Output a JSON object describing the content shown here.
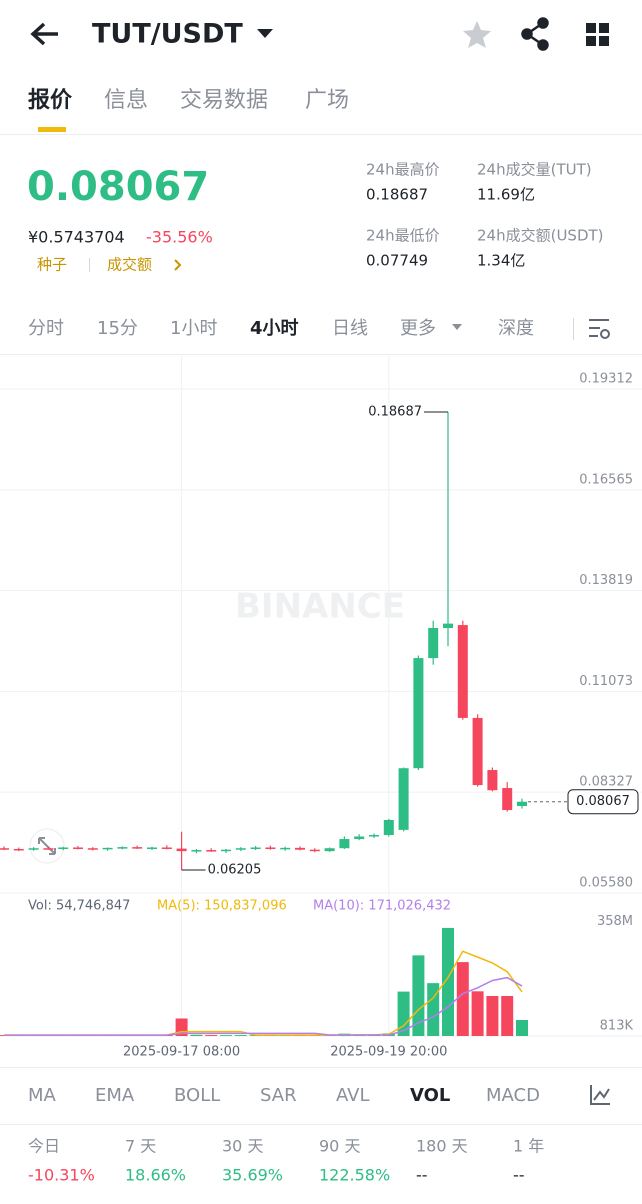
{
  "header": {
    "pair": "TUT/USDT"
  },
  "tabs": [
    "报价",
    "信息",
    "交易数据",
    "广场"
  ],
  "quote": {
    "price": "0.08067",
    "cny": "¥0.5743704",
    "change": "-35.56%",
    "tag": "种子",
    "link": "成交额",
    "stats": [
      {
        "label": "24h最高价",
        "value": "0.18687"
      },
      {
        "label": "24h成交量(TUT)",
        "value": "11.69亿"
      },
      {
        "label": "24h最低价",
        "value": "0.07749"
      },
      {
        "label": "24h成交额(USDT)",
        "value": "1.34亿"
      }
    ]
  },
  "timeframes": [
    "分时",
    "15分",
    "1小时",
    "4小时",
    "日线",
    "更多",
    "深度"
  ],
  "chart_data": {
    "type": "candlestick",
    "watermark": "BINANCE",
    "categories": [
      null,
      null,
      null,
      null,
      null,
      null,
      null,
      null,
      null,
      null,
      null,
      null,
      "2025-09-17 08:00",
      null,
      null,
      null,
      null,
      null,
      null,
      null,
      null,
      null,
      null,
      null,
      null,
      null,
      "2025-09-19 20:00",
      null,
      null,
      null,
      null,
      null,
      null,
      null,
      null,
      null
    ],
    "open": [
      0.068,
      0.0678,
      0.0676,
      0.068,
      0.0679,
      0.0682,
      0.068,
      0.0677,
      0.0681,
      0.0683,
      0.068,
      0.0682,
      0.0679,
      0.0672,
      0.0675,
      0.0673,
      0.0676,
      0.068,
      0.0682,
      0.0678,
      0.0681,
      0.0676,
      0.0672,
      0.068,
      0.0705,
      0.0712,
      0.0716,
      0.073,
      0.0898,
      0.1198,
      0.128,
      0.1288,
      0.1035,
      0.0893,
      0.0844,
      0.0795
    ],
    "high": [
      0.0685,
      0.0682,
      0.0683,
      0.0684,
      0.0684,
      0.0686,
      0.0683,
      0.0682,
      0.0685,
      0.0687,
      0.0684,
      0.0688,
      0.0725,
      0.0678,
      0.068,
      0.0678,
      0.0683,
      0.0686,
      0.0687,
      0.0684,
      0.0685,
      0.068,
      0.0682,
      0.0712,
      0.0718,
      0.072,
      0.076,
      0.09,
      0.1205,
      0.13,
      0.18687,
      0.13,
      0.1045,
      0.09,
      0.086,
      0.0815
    ],
    "low": [
      0.0675,
      0.0672,
      0.0673,
      0.0676,
      0.0675,
      0.0677,
      0.0674,
      0.0673,
      0.0677,
      0.0678,
      0.0675,
      0.0677,
      0.06205,
      0.0666,
      0.067,
      0.0667,
      0.0672,
      0.0675,
      0.0676,
      0.0673,
      0.0674,
      0.0669,
      0.067,
      0.0678,
      0.0702,
      0.0708,
      0.0712,
      0.0726,
      0.0893,
      0.118,
      0.123,
      0.103,
      0.0848,
      0.0835,
      0.078,
      0.0788
    ],
    "close": [
      0.0678,
      0.0676,
      0.068,
      0.0679,
      0.0682,
      0.068,
      0.0677,
      0.0681,
      0.0683,
      0.068,
      0.0682,
      0.0679,
      0.0672,
      0.0675,
      0.0673,
      0.0676,
      0.068,
      0.0682,
      0.0678,
      0.0681,
      0.0676,
      0.0672,
      0.068,
      0.0705,
      0.0712,
      0.0716,
      0.0757,
      0.0898,
      0.1198,
      0.128,
      0.1292,
      0.1035,
      0.0852,
      0.0838,
      0.0784,
      0.08067
    ],
    "up_color": "#2ebd85",
    "down_color": "#f6465d",
    "ylim": [
      0.0558,
      0.19312
    ],
    "yticks": [
      0.19312,
      0.16565,
      0.13819,
      0.11073,
      0.08327,
      {
        "value": 0.0558,
        "label": "0.05580"
      }
    ],
    "high_label": "0.18687",
    "low_label": "0.06205",
    "last_label": "0.08067",
    "last_value": 0.08067,
    "volume": [
      3000000,
      2500000,
      3500000,
      2800000,
      3200000,
      2600000,
      3000000,
      2700000,
      3300000,
      2900000,
      3100000,
      2800000,
      60000000,
      4000000,
      3200000,
      2900000,
      3100000,
      2700000,
      3300000,
      3000000,
      2800000,
      3200000,
      3600000,
      8000000,
      5000000,
      5500000,
      9000000,
      152000000,
      276000000,
      181000000,
      370000000,
      253000000,
      153000000,
      137000000,
      137000000,
      54746847
    ],
    "ma5": [
      3000000,
      3000000,
      3000000,
      3000000,
      3000000,
      3000000,
      3000000,
      3000000,
      3000000,
      3000000,
      3000000,
      3000000,
      15000000,
      15000000,
      15000000,
      15000000,
      15000000,
      3000000,
      3000000,
      3000000,
      3000000,
      3000000,
      3000000,
      4000000,
      4000000,
      4000000,
      6000000,
      35000000,
      90000000,
      130000000,
      200000000,
      290000000,
      270000000,
      250000000,
      220000000,
      150837096
    ],
    "ma10": [
      3000000,
      3000000,
      3000000,
      3000000,
      3000000,
      3000000,
      3000000,
      3000000,
      3000000,
      3000000,
      3000000,
      3000000,
      9000000,
      9000000,
      9000000,
      9000000,
      9000000,
      9000000,
      9000000,
      9000000,
      9000000,
      9000000,
      3500000,
      3500000,
      3500000,
      3500000,
      3500000,
      18000000,
      45000000,
      65000000,
      100000000,
      145000000,
      165000000,
      190000000,
      200000000,
      171026432
    ],
    "ma5_color": "#f0b90b",
    "ma10_color": "#b37feb",
    "vol_ylim": [
      0,
      380000000
    ],
    "vol_yticks": [
      {
        "value": 358000000,
        "label": "358M"
      },
      {
        "value": 813000,
        "label": "813K"
      }
    ],
    "vol_legend": "Vol: 54,746,847",
    "ma5_legend": "MA(5): 150,837,096",
    "ma10_legend": "MA(10): 171,026,432"
  },
  "indicators": [
    "MA",
    "EMA",
    "BOLL",
    "SAR",
    "AVL",
    "VOL",
    "MACD"
  ],
  "performance": [
    {
      "label": "今日",
      "value": "-10.31%"
    },
    {
      "label": "7 天",
      "value": "18.66%"
    },
    {
      "label": "30 天",
      "value": "35.69%"
    },
    {
      "label": "90 天",
      "value": "122.58%"
    },
    {
      "label": "180 天",
      "value": "--"
    },
    {
      "label": "1 年",
      "value": "--"
    }
  ]
}
